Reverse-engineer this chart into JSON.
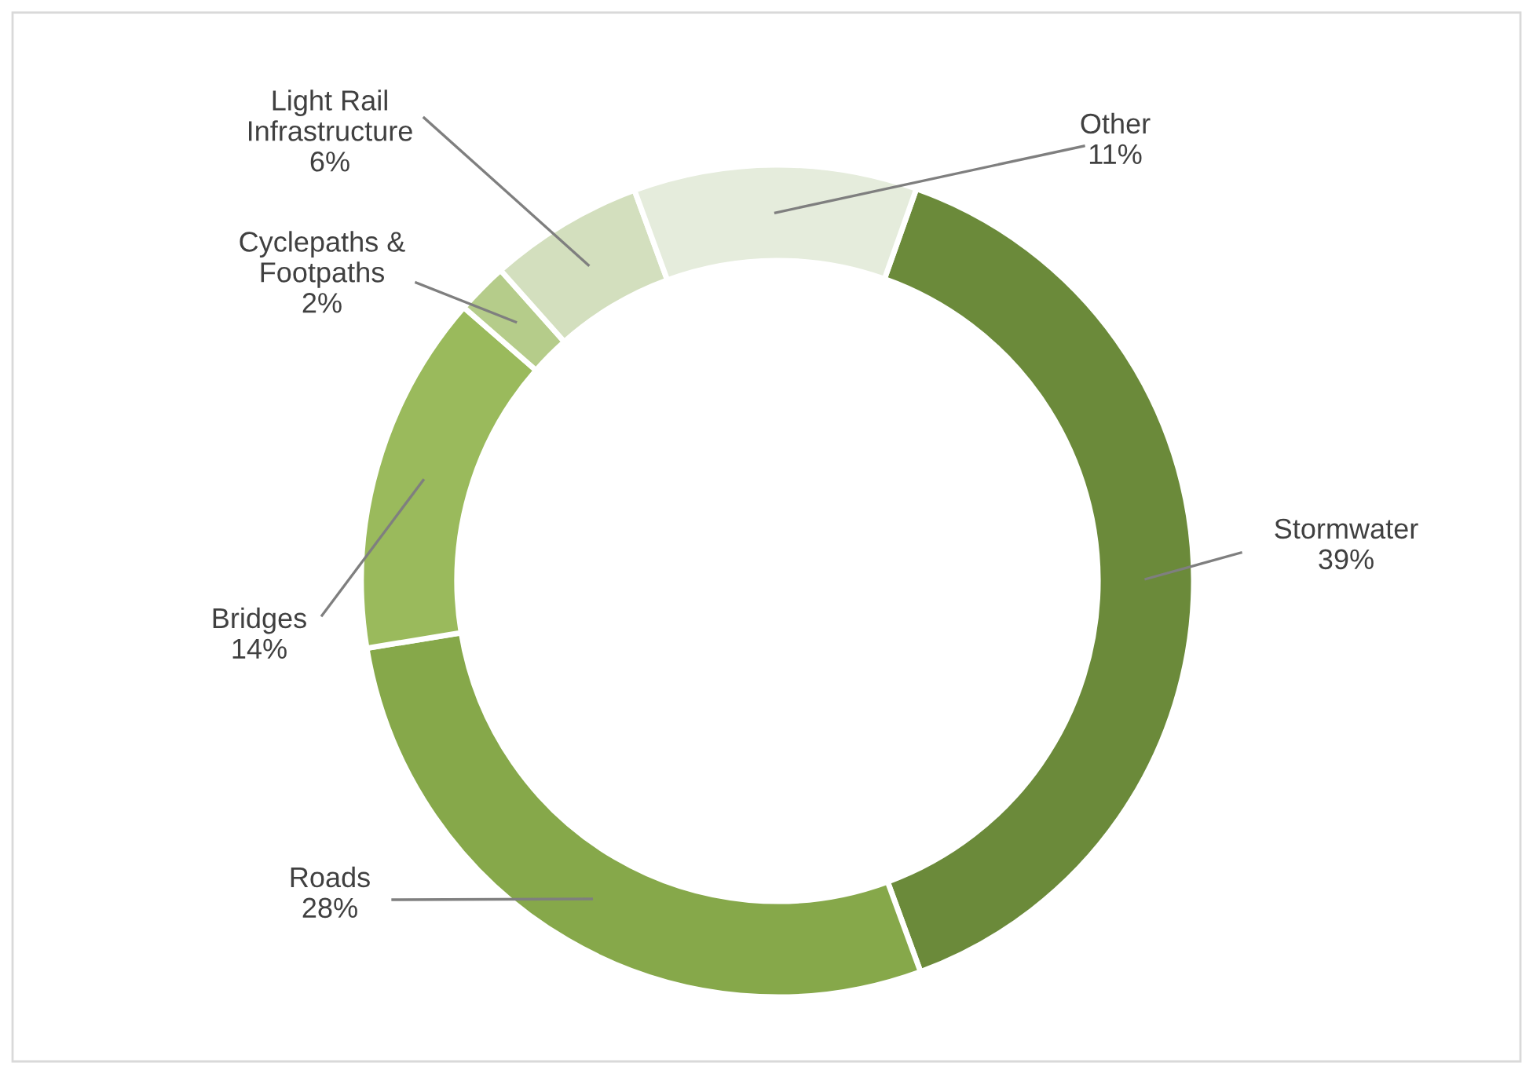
{
  "chart_data": {
    "type": "donut",
    "categories": [
      "Stormwater",
      "Roads",
      "Bridges",
      "Cyclepaths &\nFootpaths",
      "Light Rail\nInfrastructure",
      "Other"
    ],
    "values": [
      39,
      28,
      14,
      2,
      6,
      11
    ],
    "value_labels": [
      "39%",
      "28%",
      "14%",
      "2%",
      "6%",
      "11%"
    ],
    "colors": [
      "#6b8a3a",
      "#86a84a",
      "#9aba5c",
      "#b5cc8a",
      "#d3dfbe",
      "#e5ecdc"
    ]
  }
}
